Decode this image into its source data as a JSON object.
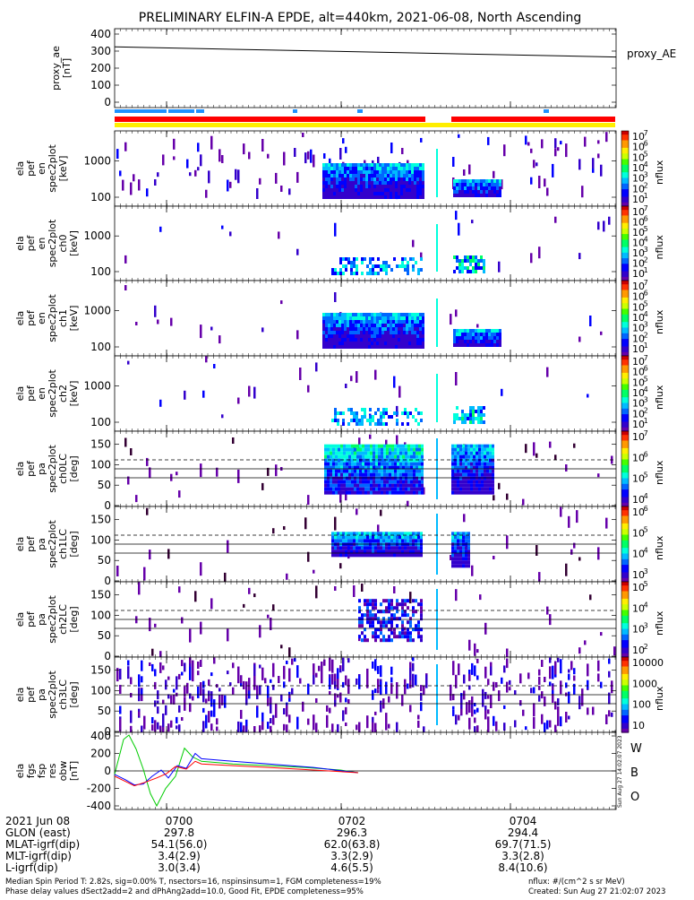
{
  "title": "PRELIMINARY ELFIN-A EPDE, alt=440km, 2021-06-08, North Ascending",
  "colors": {
    "spectrum": [
      "#ffffff",
      "#6600aa",
      "#3300cc",
      "#0000ff",
      "#0066ff",
      "#00bbff",
      "#00ffdd",
      "#00ff66",
      "#44ff00",
      "#ccff00",
      "#ffee00",
      "#ff9900",
      "#ff3300",
      "#cc0000"
    ],
    "bar_red": "#ff0000",
    "bar_yellow": "#ffee00",
    "bar_blue": "#1e90ff",
    "res_green": "#00cc00",
    "res_blue": "#0000ff",
    "res_red": "#ff0000",
    "label_w": "#ff0000",
    "label_b": "#00aa00",
    "label_o": "#0000ff"
  },
  "panels": [
    {
      "ylabel": [
        "proxy_ae",
        "[nT]"
      ],
      "right_label": "proxy_AE",
      "ticks": [
        "400",
        "300",
        "200",
        "100",
        "0"
      ]
    },
    {
      "ylabel": [
        "ela",
        "pef",
        "en",
        "spec2plot",
        "[keV]"
      ],
      "ticks": [
        "1000",
        "100"
      ],
      "cb_ticks": [
        "10",
        "10",
        "10",
        "10",
        "10",
        "10",
        "10"
      ],
      "cb_exps": [
        "7",
        "6",
        "5",
        "4",
        "3",
        "2",
        "1"
      ],
      "cb_label": "nflux"
    },
    {
      "ylabel": [
        "ela",
        "pef",
        "en",
        "spec2plot",
        "ch0",
        "[keV]"
      ],
      "ticks": [
        "1000",
        "100"
      ],
      "cb_ticks": [
        "10",
        "10",
        "10",
        "10",
        "10",
        "10",
        "10"
      ],
      "cb_exps": [
        "7",
        "6",
        "5",
        "4",
        "3",
        "2",
        "1"
      ],
      "cb_label": "nflux"
    },
    {
      "ylabel": [
        "ela",
        "pef",
        "en",
        "spec2plot",
        "ch1",
        "[keV]"
      ],
      "ticks": [
        "1000",
        "100"
      ],
      "cb_ticks": [
        "10",
        "10",
        "10",
        "10",
        "10",
        "10",
        "10"
      ],
      "cb_exps": [
        "7",
        "6",
        "5",
        "4",
        "3",
        "2",
        "1"
      ],
      "cb_label": "nflux"
    },
    {
      "ylabel": [
        "ela",
        "pef",
        "en",
        "spec2plot",
        "ch2",
        "[keV]"
      ],
      "ticks": [
        "1000",
        "100"
      ],
      "cb_ticks": [
        "10",
        "10",
        "10",
        "10",
        "10",
        "10",
        "10"
      ],
      "cb_exps": [
        "7",
        "6",
        "5",
        "4",
        "3",
        "2",
        "1"
      ],
      "cb_label": "nflux"
    },
    {
      "ylabel": [
        "ela",
        "pef",
        "pa",
        "spec2plot",
        "ch0LC",
        "[deg]"
      ],
      "ticks": [
        "150",
        "100",
        "50",
        "0"
      ],
      "cb_ticks": [
        "10",
        "10",
        "10",
        "10"
      ],
      "cb_exps": [
        "7",
        "6",
        "5",
        "4"
      ],
      "cb_label": "nflux"
    },
    {
      "ylabel": [
        "ela",
        "pef",
        "pa",
        "spec2plot",
        "ch1LC",
        "[deg]"
      ],
      "ticks": [
        "150",
        "100",
        "50",
        "0"
      ],
      "cb_ticks": [
        "10",
        "10",
        "10",
        "10"
      ],
      "cb_exps": [
        "6",
        "5",
        "4",
        "3"
      ],
      "cb_label": "nflux"
    },
    {
      "ylabel": [
        "ela",
        "pef",
        "pa",
        "spec2plot",
        "ch2LC",
        "[deg]"
      ],
      "ticks": [
        "150",
        "100",
        "50",
        "0"
      ],
      "cb_ticks": [
        "10",
        "10",
        "10",
        "10"
      ],
      "cb_exps": [
        "5",
        "4",
        "3",
        "2"
      ],
      "cb_label": "nflux"
    },
    {
      "ylabel": [
        "ela",
        "pef",
        "pa",
        "spec2plot",
        "ch3LC",
        "[deg]"
      ],
      "ticks": [
        "150",
        "100",
        "50",
        "0"
      ],
      "cb_ticks": [
        "10000",
        "1000",
        "100",
        "10"
      ],
      "cb_exps": [
        "",
        "",
        "",
        ""
      ],
      "cb_label": "nflux"
    },
    {
      "ylabel": [
        "ela",
        "fgs",
        "fsp",
        "res",
        "obw",
        "[nT]"
      ],
      "ticks": [
        "400",
        "200",
        "0",
        "-200",
        "-400"
      ],
      "side_labels": [
        "W",
        "B",
        "O"
      ],
      "side_note": "Sun Aug 27 14:02:07 2023"
    }
  ],
  "footer": {
    "rows": [
      {
        "label": "2021 Jun 08",
        "v1": "0700",
        "v2": "0702",
        "v3": "0704"
      },
      {
        "label": "GLON (east)",
        "v1": "297.8",
        "v2": "296.3",
        "v3": "294.4"
      },
      {
        "label": "MLAT-igrf(dip)",
        "v1": "54.1(56.0)",
        "v2": "62.0(63.8)",
        "v3": "69.7(71.5)"
      },
      {
        "label": "MLT-igrf(dip)",
        "v1": "3.4(2.9)",
        "v2": "3.3(2.9)",
        "v3": "3.3(2.8)"
      },
      {
        "label": "L-igrf(dip)",
        "v1": "3.0(3.4)",
        "v2": "4.6(5.5)",
        "v3": "8.4(10.6)"
      }
    ],
    "note1": "Median Spin Period T: 2.82s, sig=0.00% T, nsectors=16, nspinsinsum=1, FGM completeness=19%",
    "note2": "Phase delay values dSect2add=2 and dPhAng2add=10.0, Good Fit, EPDE completeness=95%",
    "note_right1": "nflux: #/(cm^2 s sr MeV)",
    "note_right2": "Created: Sun Aug 27 21:02:07 2023"
  },
  "chart_data": {
    "type": "heatmap",
    "title": "PRELIMINARY ELFIN-A EPDE, alt=440km, 2021-06-08, North Ascending",
    "x_tick_labels": [
      "0700",
      "0702",
      "0704"
    ],
    "proxy_ae": {
      "x": [
        "start",
        "end"
      ],
      "values": [
        325,
        265
      ],
      "ylim": [
        0,
        400
      ]
    },
    "energy_axis_keV": {
      "ticks": [
        100,
        1000
      ],
      "scale": "log"
    },
    "pitch_angle_axis_deg": {
      "ticks": [
        0,
        50,
        100,
        150
      ],
      "ylim": [
        0,
        180
      ]
    },
    "fgs_residuals_nT": {
      "ylim": [
        -400,
        400
      ],
      "series": [
        "W",
        "B",
        "O"
      ]
    },
    "flux_units": "nflux: #/(cm^2 s sr MeV)"
  }
}
